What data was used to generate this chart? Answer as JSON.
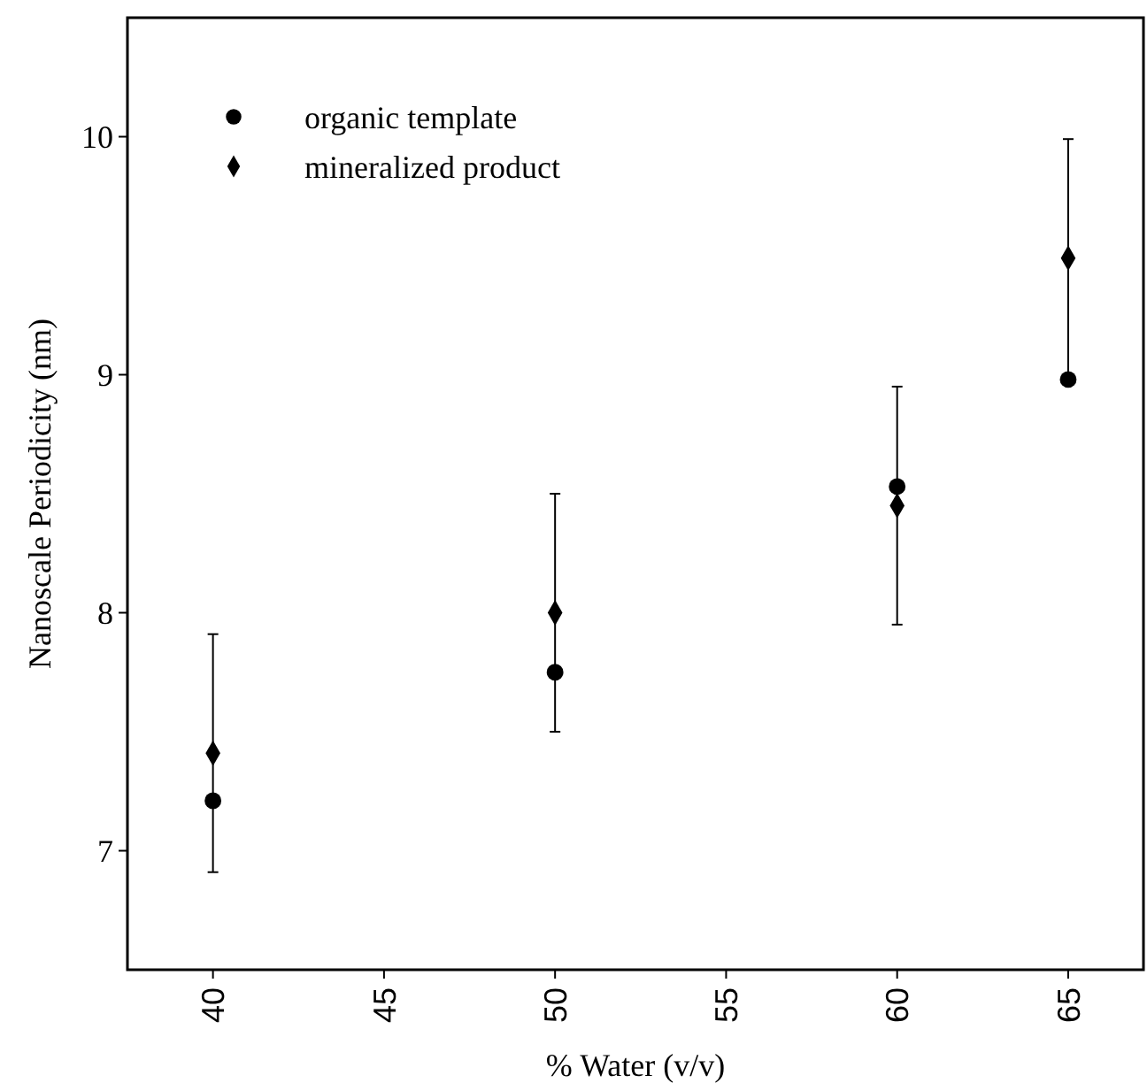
{
  "chart_data": {
    "type": "scatter",
    "xlabel": "% Water (v/v)",
    "ylabel": "Nanoscale Periodicity (nm)",
    "x": [
      40,
      50,
      60,
      65
    ],
    "series": [
      {
        "name": "organic template",
        "color": "#000000",
        "marker": "circle",
        "values": [
          7.21,
          7.75,
          8.53,
          8.98
        ]
      },
      {
        "name": "mineralized product",
        "color": "#000000",
        "marker": "diamond",
        "values": [
          7.41,
          8.0,
          8.45,
          9.49
        ],
        "errors": [
          0.5,
          0.5,
          0.5,
          0.5
        ]
      }
    ],
    "xlim": [
      37.5,
      67.2
    ],
    "xticks": [
      40,
      45,
      50,
      55,
      60,
      65
    ],
    "ylim": [
      6.5,
      10.5
    ],
    "yticks": [
      7,
      8,
      9,
      10
    ],
    "grid": false,
    "legend": "top left"
  }
}
